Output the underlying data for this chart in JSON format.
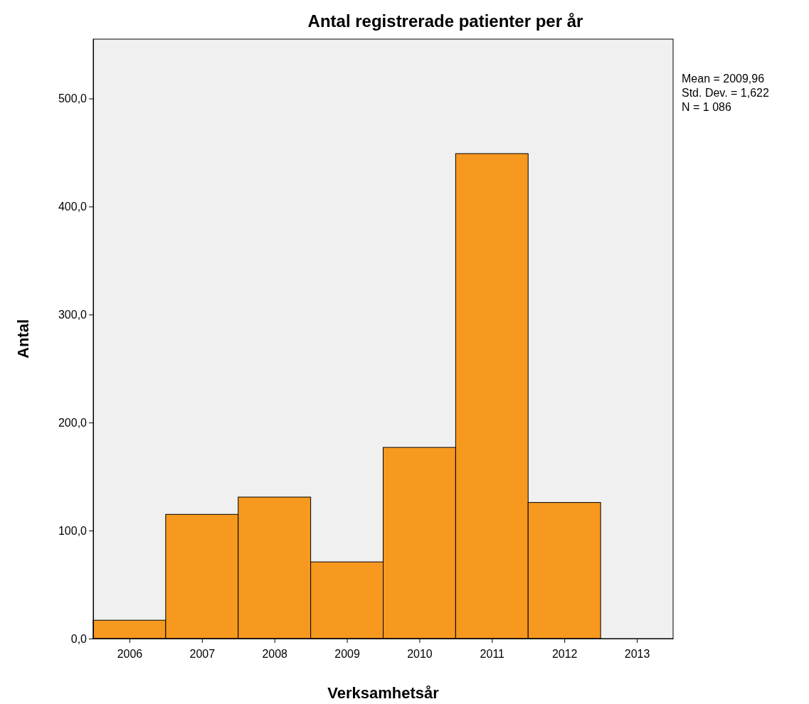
{
  "chart_data": {
    "type": "histogram",
    "title": "Antal registrerade patienter per år",
    "xlabel": "Verksamhetsår",
    "ylabel": "Antal",
    "bins": [
      2005.5,
      2006.5,
      2007.5,
      2008.5,
      2009.5,
      2010.5,
      2011.5,
      2012.5
    ],
    "values": [
      17,
      115,
      131,
      71,
      177,
      449,
      126
    ],
    "color": "#f7991e",
    "xlim": [
      2005.5,
      2013.5
    ],
    "xticks": [
      2006,
      2007,
      2008,
      2009,
      2010,
      2011,
      2012,
      2013
    ],
    "ylim": [
      0,
      555
    ],
    "yticks": [
      {
        "value": 0,
        "label": "0,0"
      },
      {
        "value": 100,
        "label": "100,0"
      },
      {
        "value": 200,
        "label": "200,0"
      },
      {
        "value": 300,
        "label": "300,0"
      },
      {
        "value": 400,
        "label": "400,0"
      },
      {
        "value": 500,
        "label": "500,0"
      }
    ],
    "grid": false,
    "annotations": [
      "Mean = 2009,96",
      "Std. Dev. = 1,622",
      "N = 1 086"
    ]
  }
}
